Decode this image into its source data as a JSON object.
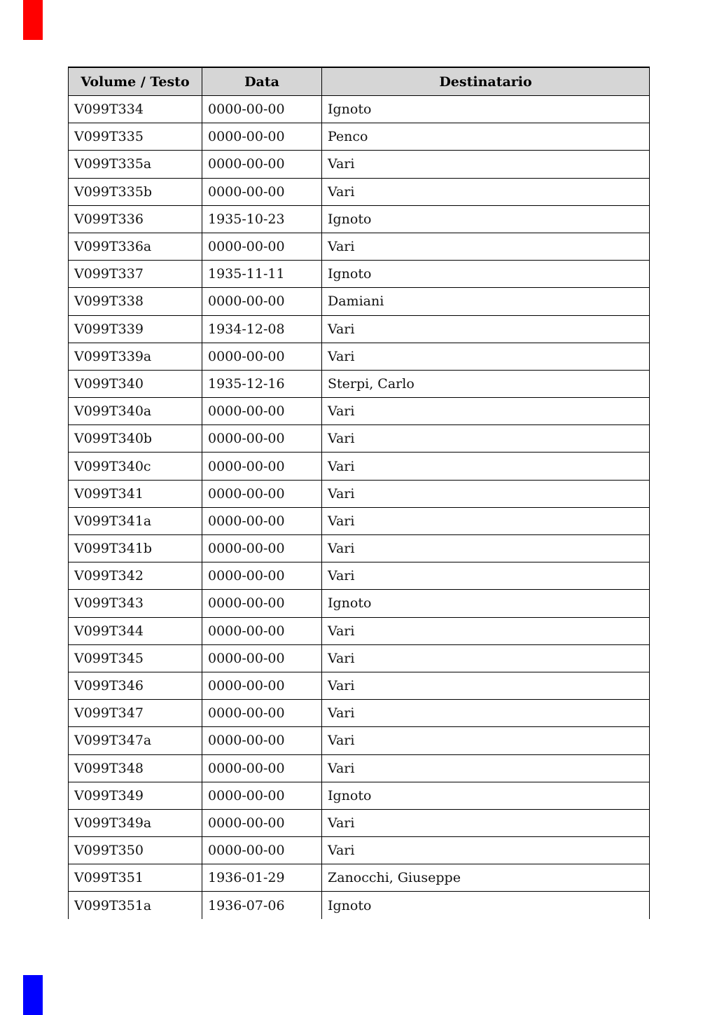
{
  "page": {
    "background": "#ffffff",
    "markers": {
      "top": {
        "name": "page-top-marker",
        "color": "#ff0000"
      },
      "bottom": {
        "name": "page-bottom-marker",
        "color": "#0000ff"
      }
    }
  },
  "table": {
    "header_bg": "#d6d6d6",
    "border_color": "#000000",
    "columns": [
      {
        "key": "volume",
        "label": "Volume / Testo"
      },
      {
        "key": "data",
        "label": "Data"
      },
      {
        "key": "destinatario",
        "label": "Destinatario"
      }
    ],
    "rows": [
      {
        "volume": "V099T334",
        "data": "0000-00-00",
        "destinatario": "Ignoto"
      },
      {
        "volume": "V099T335",
        "data": "0000-00-00",
        "destinatario": "Penco"
      },
      {
        "volume": "V099T335a",
        "data": "0000-00-00",
        "destinatario": "Vari"
      },
      {
        "volume": "V099T335b",
        "data": "0000-00-00",
        "destinatario": "Vari"
      },
      {
        "volume": "V099T336",
        "data": "1935-10-23",
        "destinatario": "Ignoto"
      },
      {
        "volume": "V099T336a",
        "data": "0000-00-00",
        "destinatario": "Vari"
      },
      {
        "volume": "V099T337",
        "data": "1935-11-11",
        "destinatario": "Ignoto"
      },
      {
        "volume": "V099T338",
        "data": "0000-00-00",
        "destinatario": "Damiani"
      },
      {
        "volume": "V099T339",
        "data": "1934-12-08",
        "destinatario": "Vari"
      },
      {
        "volume": "V099T339a",
        "data": "0000-00-00",
        "destinatario": "Vari"
      },
      {
        "volume": "V099T340",
        "data": "1935-12-16",
        "destinatario": "Sterpi, Carlo"
      },
      {
        "volume": "V099T340a",
        "data": "0000-00-00",
        "destinatario": "Vari"
      },
      {
        "volume": "V099T340b",
        "data": "0000-00-00",
        "destinatario": "Vari"
      },
      {
        "volume": "V099T340c",
        "data": "0000-00-00",
        "destinatario": "Vari"
      },
      {
        "volume": "V099T341",
        "data": "0000-00-00",
        "destinatario": "Vari"
      },
      {
        "volume": "V099T341a",
        "data": "0000-00-00",
        "destinatario": "Vari"
      },
      {
        "volume": "V099T341b",
        "data": "0000-00-00",
        "destinatario": "Vari"
      },
      {
        "volume": "V099T342",
        "data": "0000-00-00",
        "destinatario": "Vari"
      },
      {
        "volume": "V099T343",
        "data": "0000-00-00",
        "destinatario": "Ignoto"
      },
      {
        "volume": "V099T344",
        "data": "0000-00-00",
        "destinatario": "Vari"
      },
      {
        "volume": "V099T345",
        "data": "0000-00-00",
        "destinatario": "Vari"
      },
      {
        "volume": "V099T346",
        "data": "0000-00-00",
        "destinatario": "Vari"
      },
      {
        "volume": "V099T347",
        "data": "0000-00-00",
        "destinatario": "Vari"
      },
      {
        "volume": "V099T347a",
        "data": "0000-00-00",
        "destinatario": "Vari"
      },
      {
        "volume": "V099T348",
        "data": "0000-00-00",
        "destinatario": "Vari"
      },
      {
        "volume": "V099T349",
        "data": "0000-00-00",
        "destinatario": "Ignoto"
      },
      {
        "volume": "V099T349a",
        "data": "0000-00-00",
        "destinatario": "Vari"
      },
      {
        "volume": "V099T350",
        "data": "0000-00-00",
        "destinatario": "Vari"
      },
      {
        "volume": "V099T351",
        "data": "1936-01-29",
        "destinatario": "Zanocchi, Giuseppe"
      },
      {
        "volume": "V099T351a",
        "data": "1936-07-06",
        "destinatario": "Ignoto"
      }
    ]
  }
}
